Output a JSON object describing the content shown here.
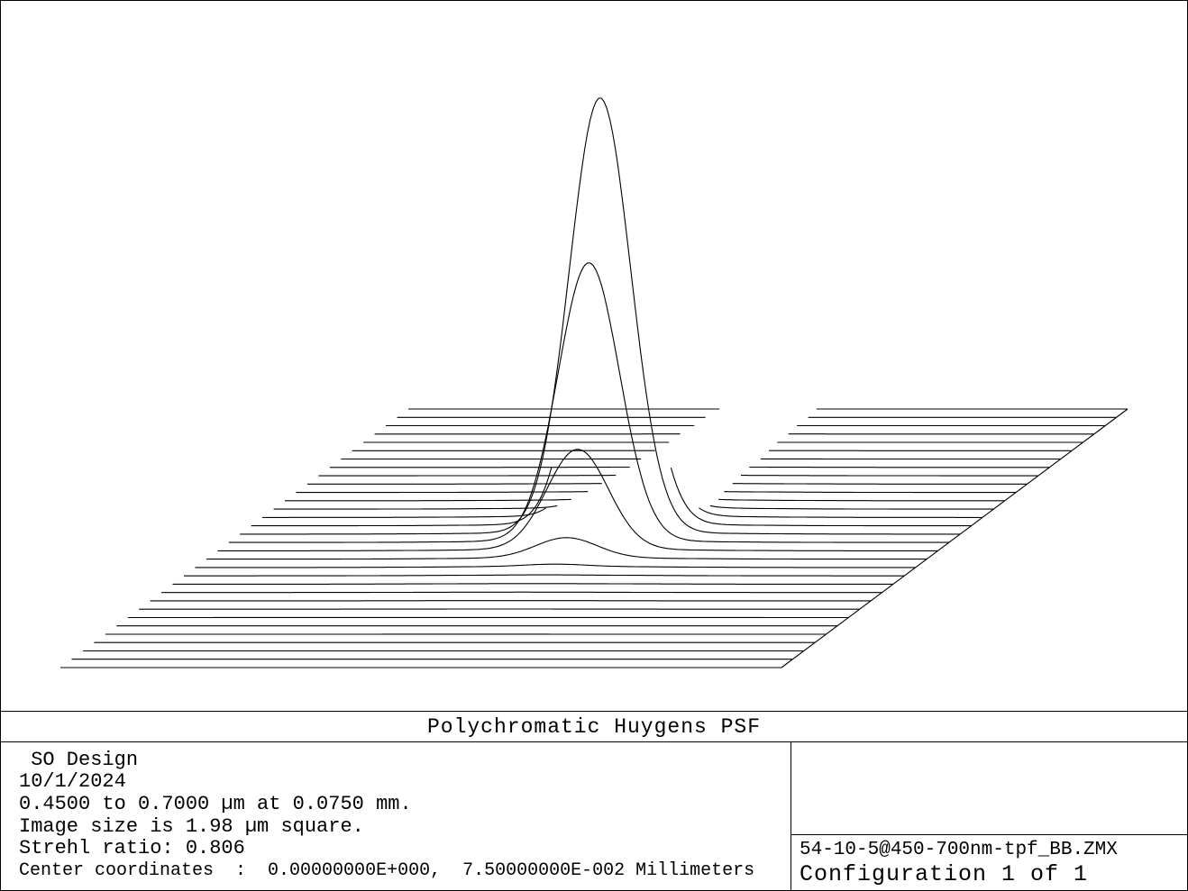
{
  "chart_data": {
    "type": "surface-3d-waterfall",
    "title": "Polychromatic Huygens PSF",
    "description_values": {
      "peak_relative_intensity": 1.0,
      "strehl_ratio": 0.806
    },
    "grid": false,
    "legend": "none"
  },
  "header": {
    "title": "Polychromatic Huygens PSF"
  },
  "info": {
    "design": " SO Design",
    "date": "10/1/2024",
    "wavelength": "0.4500 to 0.7000 µm at 0.0750 mm.",
    "image_size": "Image size is 1.98 µm square.",
    "strehl": "Strehl ratio: 0.806",
    "center": "Center coordinates  :  0.00000000E+000,  7.50000000E-002 Millimeters"
  },
  "file": {
    "name": "54-10-5@450-700nm-tpf_BB.ZMX",
    "configuration": "Configuration 1 of 1"
  }
}
